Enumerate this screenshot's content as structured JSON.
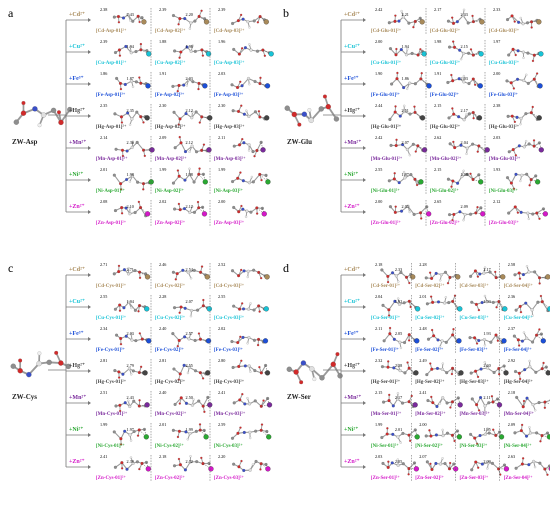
{
  "ion_colors": {
    "Cd": "#a88a5a",
    "Cu": "#18c3d6",
    "Fe": "#1c4fd8",
    "Hg": "#444444",
    "Mn": "#7a2a9c",
    "Ni": "#2aa832",
    "Zn": "#d418c8"
  },
  "panels": [
    {
      "letter": "a",
      "molecule": "ZW-Asp",
      "aa": "Asp",
      "count": 3,
      "ions": [
        "+Cd²⁺",
        "+Cu²⁺",
        "+Fe³⁺",
        "+Hg²⁺",
        "+Mn²⁺",
        "+Ni²⁺",
        "+Zn²⁺"
      ],
      "labels": [
        [
          "[Cd-Asp-01]²⁺",
          "[Cd-Asp-02]²⁺",
          "[Cd-Asp-03]²⁺"
        ],
        [
          "[Cu-Asp-01]²⁺",
          "[Cu-Asp-02]²⁺",
          "[Cu-Asp-03]²⁺"
        ],
        [
          "[Fe-Asp-01]³⁺",
          "[Fe-Asp-02]³⁺",
          "[Fe-Asp-03]³⁺"
        ],
        [
          "[Hg-Asp-01]²⁺",
          "[Hg-Asp-02]²⁺",
          "[Hg-Asp-03]²⁺"
        ],
        [
          "[Mn-Asp-01]²⁺",
          "[Mn-Asp-02]²⁺",
          "[Mn-Asp-03]²⁺"
        ],
        [
          "[Ni-Asp-01]²⁺",
          "[Ni-Asp-02]²⁺",
          "[Ni-Asp-03]²⁺"
        ],
        [
          "[Zn-Asp-01]²⁺",
          "[Zn-Asp-02]²⁺",
          "[Zn-Asp-03]²⁺"
        ]
      ],
      "distances": [
        [
          "2.38",
          "2.43",
          "2.39",
          "2.20",
          "2.39"
        ],
        [
          "2.39",
          "1.94",
          "1.88",
          "1.98",
          "1.96"
        ],
        [
          "1.86",
          "1.87",
          "1.91",
          "2.03",
          "2.03"
        ],
        [
          "2.35",
          "2.35",
          "2.30",
          "2.12",
          "2.30"
        ],
        [
          "2.14",
          "2.36",
          "2.09",
          "2.12",
          "2.11"
        ],
        [
          "2.01",
          "1.98",
          "1.99",
          "1.98",
          "1.99"
        ],
        [
          "2.08",
          "2.10",
          "2.02",
          "2.12",
          "2.00"
        ]
      ]
    },
    {
      "letter": "b",
      "molecule": "ZW-Glu",
      "aa": "Glu",
      "count": 3,
      "ions": [
        "+Cd²⁺",
        "+Cu²⁺",
        "+Fe³⁺",
        "+Hg²⁺",
        "+Mn²⁺",
        "+Ni²⁺",
        "+Zn²⁺"
      ],
      "labels": [
        [
          "[Cd-Glu-01]²⁺",
          "[Cd-Glu-02]²⁺",
          "[Cd-Glu-03]²⁺"
        ],
        [
          "[Cu-Glu-01]²⁺",
          "[Cu-Glu-02]²⁺",
          "[Cu-Glu-03]²⁺"
        ],
        [
          "[Fe-Glu-01]³⁺",
          "[Fe-Glu-02]³⁺",
          "[Fe-Glu-03]³⁺"
        ],
        [
          "[Hg-Glu-01]²⁺",
          "[Hg-Glu-02]²⁺",
          "[Hg-Glu-03]²⁺"
        ],
        [
          "[Mn-Glu-01]²⁺",
          "[Mn-Glu-02]²⁺",
          "[Mn-Glu-03]²⁺"
        ],
        [
          "[Ni-Glu-01]²⁺",
          "[Ni-Glu-02]²⁺",
          "[Ni-Glu-03]²⁺"
        ],
        [
          "[Zn-Glu-01]²⁺",
          "[Zn-Glu-02]²⁺",
          "[Zn-Glu-03]²⁺"
        ]
      ],
      "distances": [
        [
          "2.42",
          "2.21",
          "2.17",
          "2.33",
          "2.33"
        ],
        [
          "2.00",
          "1.94",
          "1.98",
          "2.15",
          "1.97"
        ],
        [
          "1.90",
          "1.86",
          "1.91",
          "2.03",
          "2.00"
        ],
        [
          "2.44",
          "2.51",
          "2.15",
          "2.17",
          "2.38"
        ],
        [
          "2.42",
          "2.07",
          "2.62",
          "2.04",
          "2.03"
        ],
        [
          "2.55",
          "1.87",
          "2.15",
          "1.99",
          "1.93"
        ],
        [
          "2.00",
          "2.05",
          "2.65",
          "2.09",
          "2.12"
        ]
      ]
    },
    {
      "letter": "c",
      "molecule": "ZW-Cys",
      "aa": "Cys",
      "count": 3,
      "ions": [
        "+Cd²⁺",
        "+Cu²⁺",
        "+Fe³⁺",
        "+Hg²⁺",
        "+Mn²⁺",
        "+Ni²⁺",
        "+Zn²⁺"
      ],
      "labels": [
        [
          "[Cd-Cys-01]²⁺",
          "[Cd-Cys-02]²⁺",
          "[Cd-Cys-03]²⁺"
        ],
        [
          "[Cu-Cys-01]²⁺",
          "[Cu-Cys-02]²⁺",
          "[Cu-Cys-03]²⁺"
        ],
        [
          "[Fe-Cys-01]³⁺",
          "[Fe-Cys-02]³⁺",
          "[Fe-Cys-03]³⁺"
        ],
        [
          "[Hg-Cys-01]²⁺",
          "[Hg-Cys-02]²⁺",
          "[Hg-Cys-03]²⁺"
        ],
        [
          "[Mn-Cys-01]²⁺",
          "[Mn-Cys-02]²⁺",
          "[Mn-Cys-03]²⁺"
        ],
        [
          "[Ni-Cys-01]²⁺",
          "[Ni-Cys-02]²⁺",
          "[Ni-Cys-03]²⁺"
        ],
        [
          "[Zn-Cys-01]²⁺",
          "[Zn-Cys-02]²⁺",
          "[Zn-Cys-03]²⁺"
        ]
      ],
      "distances": [
        [
          "2.71",
          "2.71",
          "2.46",
          "2.54",
          "2.52"
        ],
        [
          "2.55",
          "1.94",
          "2.28",
          "2.07",
          "2.55"
        ],
        [
          "2.34",
          "2.03",
          "2.40",
          "2.57",
          "2.02"
        ],
        [
          "2.81",
          "2.79",
          "2.81",
          "2.55",
          "2.80"
        ],
        [
          "2.51",
          "2.43",
          "2.40",
          "2.50",
          "2.41"
        ],
        [
          "1.99",
          "1.97",
          "2.01",
          "1.99",
          "2.59"
        ],
        [
          "2.41",
          "2.39",
          "2.18",
          "2.32",
          "2.20"
        ]
      ]
    },
    {
      "letter": "d",
      "molecule": "ZW-Ser",
      "aa": "Ser",
      "count": 4,
      "ions": [
        "+Cd²⁺",
        "+Cu²⁺",
        "+Fe³⁺",
        "+Hg²⁺",
        "+Mn²⁺",
        "+Ni²⁺",
        "+Zn²⁺"
      ],
      "labels": [
        [
          "[Cd-Ser-01]²⁺",
          "[Cd-Ser-02]²⁺",
          "[Cd-Ser-03]²⁺",
          "[Cd-Ser-04]²⁺"
        ],
        [
          "[Cu-Ser-01]²⁺",
          "[Cu-Ser-02]²⁺",
          "[Cu-Ser-03]²⁺",
          "[Cu-Ser-04]²⁺"
        ],
        [
          "[Fe-Ser-01]³⁺",
          "[Fe-Ser-02]³⁺",
          "[Fe-Ser-03]³⁺",
          "[Fe-Ser-04]³⁺"
        ],
        [
          "[Hg-Ser-01]²⁺",
          "[Hg-Ser-02]²⁺",
          "[Hg-Ser-03]²⁺",
          "[Hg-Ser-04]²⁺"
        ],
        [
          "[Mn-Ser-01]²⁺",
          "[Mn-Ser-02]²⁺",
          "[Mn-Ser-03]²⁺",
          "[Mn-Ser-04]²⁺"
        ],
        [
          "[Ni-Ser-01]²⁺",
          "[Ni-Ser-02]²⁺",
          "[Ni-Ser-03]²⁺",
          "[Ni-Ser-04]²⁺"
        ],
        [
          "[Zn-Ser-01]²⁺",
          "[Zn-Ser-02]²⁺",
          "[Zn-Ser-03]²⁺",
          "[Zn-Ser-04]²⁺"
        ]
      ],
      "distances": [
        [
          "2.18",
          "2.33",
          "2.28",
          "2.17",
          "2.58"
        ],
        [
          "2.04",
          "1.92",
          "2.01",
          "1.93",
          "2.36"
        ],
        [
          "2.11",
          "2.05",
          "2.48",
          "1.93",
          "2.37"
        ],
        [
          "2.32",
          "2.38",
          "2.49",
          "2.40",
          "2.92"
        ],
        [
          "2.15",
          "2.17",
          "2.41",
          "2.11",
          "2.18"
        ],
        [
          "1.99",
          "2.01",
          "2.00",
          "1.95",
          "2.09"
        ],
        [
          "2.03",
          "2.05",
          "2.07",
          "2.09",
          "2.63"
        ]
      ]
    }
  ]
}
